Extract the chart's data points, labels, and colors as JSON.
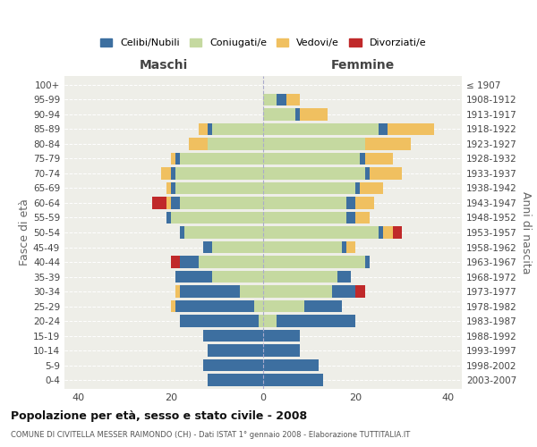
{
  "age_groups": [
    "0-4",
    "5-9",
    "10-14",
    "15-19",
    "20-24",
    "25-29",
    "30-34",
    "35-39",
    "40-44",
    "45-49",
    "50-54",
    "55-59",
    "60-64",
    "65-69",
    "70-74",
    "75-79",
    "80-84",
    "85-89",
    "90-94",
    "95-99",
    "100+"
  ],
  "birth_years": [
    "2003-2007",
    "1998-2002",
    "1993-1997",
    "1988-1992",
    "1983-1987",
    "1978-1982",
    "1973-1977",
    "1968-1972",
    "1963-1967",
    "1958-1962",
    "1953-1957",
    "1948-1952",
    "1943-1947",
    "1938-1942",
    "1933-1937",
    "1928-1932",
    "1923-1927",
    "1918-1922",
    "1913-1917",
    "1908-1912",
    "≤ 1907"
  ],
  "colors": {
    "celibi": "#3d6fa0",
    "coniugati": "#c5d9a0",
    "vedovi": "#f0c060",
    "divorziati": "#c0292a"
  },
  "maschi": {
    "celibi": [
      12,
      13,
      12,
      13,
      17,
      17,
      13,
      8,
      4,
      2,
      1,
      1,
      2,
      1,
      1,
      1,
      0,
      1,
      0,
      0,
      0
    ],
    "coniugati": [
      0,
      0,
      0,
      0,
      1,
      2,
      5,
      11,
      14,
      11,
      17,
      20,
      18,
      19,
      19,
      18,
      12,
      11,
      0,
      0,
      0
    ],
    "vedovi": [
      0,
      0,
      0,
      0,
      0,
      1,
      1,
      0,
      0,
      0,
      0,
      0,
      1,
      1,
      2,
      1,
      4,
      2,
      0,
      0,
      0
    ],
    "divorziati": [
      0,
      0,
      0,
      0,
      0,
      0,
      0,
      0,
      2,
      0,
      0,
      0,
      3,
      0,
      0,
      0,
      0,
      0,
      0,
      0,
      0
    ]
  },
  "femmine": {
    "celibi": [
      13,
      12,
      8,
      8,
      17,
      8,
      5,
      3,
      1,
      1,
      1,
      2,
      2,
      1,
      1,
      1,
      0,
      2,
      1,
      2,
      0
    ],
    "coniugati": [
      0,
      0,
      0,
      0,
      3,
      9,
      15,
      16,
      22,
      17,
      25,
      18,
      18,
      20,
      22,
      21,
      22,
      25,
      7,
      3,
      0
    ],
    "vedovi": [
      0,
      0,
      0,
      0,
      0,
      0,
      0,
      0,
      0,
      2,
      2,
      3,
      4,
      5,
      7,
      6,
      10,
      10,
      6,
      3,
      0
    ],
    "divorziati": [
      0,
      0,
      0,
      0,
      0,
      0,
      2,
      0,
      0,
      0,
      2,
      0,
      0,
      0,
      0,
      0,
      0,
      0,
      0,
      0,
      0
    ]
  },
  "title": "Popolazione per età, sesso e stato civile - 2008",
  "subtitle": "COMUNE DI CIVITELLA MESSER RAIMONDO (CH) - Dati ISTAT 1° gennaio 2008 - Elaborazione TUTTITALIA.IT",
  "xlabel_left": "Maschi",
  "xlabel_right": "Femmine",
  "ylabel_left": "Fasce di età",
  "ylabel_right": "Anni di nascita",
  "xlim": 43,
  "legend_labels": [
    "Celibi/Nubili",
    "Coniugati/e",
    "Vedovi/e",
    "Divorziati/e"
  ],
  "bg_color": "#eeeee8",
  "plot_bg": "#ffffff",
  "bar_height": 0.8
}
